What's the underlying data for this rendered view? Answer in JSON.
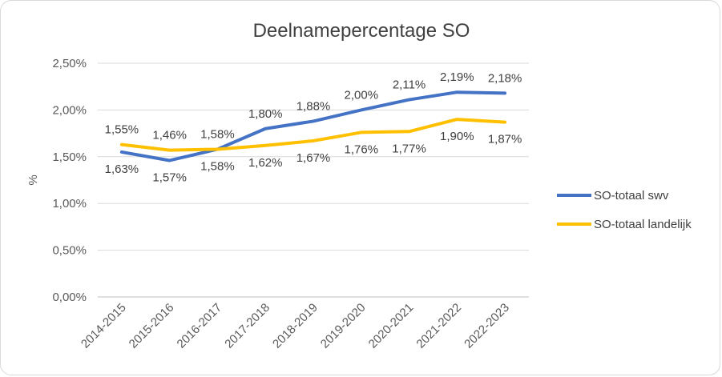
{
  "chart_data": {
    "type": "line",
    "title": "Deelnamepercentage SO",
    "xlabel": "",
    "ylabel": "%",
    "categories": [
      "2014-2015",
      "2015-2016",
      "2016-2017",
      "2017-2018",
      "2018-2019",
      "2019-2020",
      "2020-2021",
      "2021-2022",
      "2022-2023"
    ],
    "ylim": [
      0,
      2.5
    ],
    "yticks": [
      0,
      0.5,
      1.0,
      1.5,
      2.0,
      2.5
    ],
    "ytick_labels": [
      "0,00%",
      "0,50%",
      "1,00%",
      "1,50%",
      "2,00%",
      "2,50%"
    ],
    "grid": true,
    "legend_position": "right",
    "series": [
      {
        "name": "SO-totaal swv",
        "color": "#4472C4",
        "values": [
          1.55,
          1.46,
          1.58,
          1.8,
          1.88,
          2.0,
          2.11,
          2.19,
          2.18
        ],
        "labels": [
          "1,55%",
          "1,46%",
          "1,58%",
          "1,80%",
          "1,88%",
          "2,00%",
          "2,11%",
          "2,19%",
          "2,18%"
        ]
      },
      {
        "name": "SO-totaal landelijk",
        "color": "#FFC000",
        "values": [
          1.63,
          1.57,
          1.58,
          1.62,
          1.67,
          1.76,
          1.77,
          1.9,
          1.87
        ],
        "labels": [
          "1,63%",
          "1,57%",
          "1,58%",
          "1,62%",
          "1,67%",
          "1,76%",
          "1,77%",
          "1,90%",
          "1,87%"
        ]
      }
    ]
  }
}
